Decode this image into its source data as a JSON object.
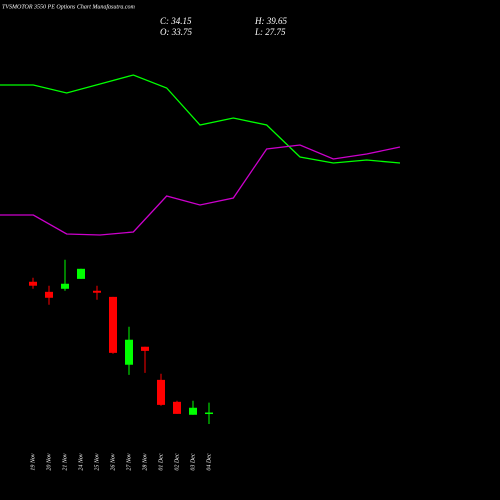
{
  "chart_data": [
    {
      "type": "candlestick",
      "title": "TVSMOTOR 3550 PE Options Chart Munafasutra.com",
      "info": [
        {
          "label": "C:",
          "value": 34.15
        },
        {
          "label": "H:",
          "value": 39.65
        },
        {
          "label": "O:",
          "value": 33.75
        },
        {
          "label": "L:",
          "value": 27.75
        }
      ],
      "categories": [
        "19 Nov",
        "20 Nov",
        "21 Nov",
        "24 Nov",
        "25 Nov",
        "26 Nov",
        "27 Nov",
        "28 Nov",
        "01 Dec",
        "02 Dec",
        "03 Dec",
        "04 Dec"
      ],
      "open": [
        106.8,
        101.2,
        102.9,
        108.4,
        101.8,
        98.4,
        60.7,
        70.7,
        52.3,
        40.1,
        32.9,
        33.75
      ],
      "close": [
        104.6,
        97.9,
        105.7,
        114,
        100.7,
        67.3,
        74.6,
        68.4,
        38.4,
        33.4,
        36.8,
        34.15
      ],
      "high": [
        109,
        104.6,
        119,
        114,
        104.6,
        98.4,
        81.8,
        70.7,
        55.7,
        40.7,
        40.7,
        39.65
      ],
      "low": [
        102.9,
        94,
        101.8,
        108.4,
        96.8,
        66.8,
        55.1,
        56.2,
        37.9,
        33.4,
        32.9,
        27.75
      ],
      "up_color": "#00ff00",
      "down_color": "#ff0000",
      "ylim": [
        20,
        130
      ]
    },
    {
      "type": "line",
      "ylim": [
        0,
        100
      ],
      "series": [
        {
          "color": "#00ff00",
          "values": [
            82.5,
            82.5,
            78.5,
            83,
            87.5,
            81,
            62.5,
            66,
            62.5,
            46.5,
            43.5,
            45,
            43.5
          ]
        },
        {
          "color": "#cc00cc",
          "values": [
            17.5,
            17.5,
            8,
            7.5,
            9,
            27,
            22.5,
            26,
            50.5,
            52.5,
            45.5,
            48,
            51.5
          ]
        }
      ]
    }
  ]
}
